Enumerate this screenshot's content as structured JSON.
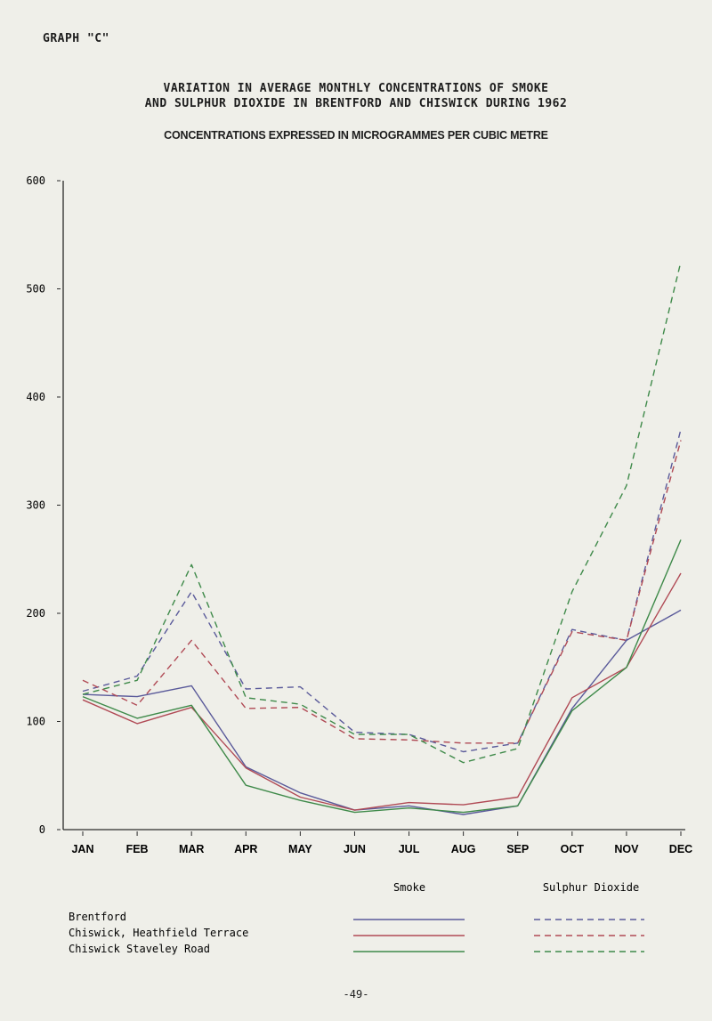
{
  "header": {
    "graph_label": "GRAPH \"C\"",
    "title_line1": "VARIATION IN AVERAGE MONTHLY CONCENTRATIONS OF SMOKE",
    "title_line2": "AND SULPHUR DIOXIDE IN BRENTFORD AND CHISWICK DURING 1962",
    "subtitle": "CONCENTRATIONS EXPRESSED IN MICROGRAMMES PER CUBIC METRE"
  },
  "legend": {
    "smoke_header": "Smoke",
    "so2_header": "Sulphur Dioxide"
  },
  "footer": {
    "page_number": "-49-"
  },
  "colors": {
    "brentford": "#5a5a9a",
    "heathfield": "#b04a55",
    "staveley": "#3f8a4a"
  },
  "chart_data": {
    "type": "line",
    "categories": [
      "JAN",
      "FEB",
      "MAR",
      "APR",
      "MAY",
      "JUN",
      "JUL",
      "AUG",
      "SEP",
      "OCT",
      "NOV",
      "DEC"
    ],
    "ylim": [
      0,
      600
    ],
    "yticks": [
      0,
      100,
      200,
      300,
      400,
      500,
      600
    ],
    "grid": false,
    "legend_placement": "bottom",
    "series": [
      {
        "name": "Brentford",
        "pollutant": "Smoke",
        "values": [
          125,
          123,
          133,
          58,
          34,
          18,
          22,
          14,
          22,
          112,
          175,
          203
        ]
      },
      {
        "name": "Chiswick, Heathfield Terrace",
        "pollutant": "Smoke",
        "values": [
          120,
          98,
          113,
          57,
          30,
          18,
          25,
          23,
          30,
          122,
          150,
          237
        ]
      },
      {
        "name": "Chiswick Staveley Road",
        "pollutant": "Smoke",
        "values": [
          123,
          103,
          115,
          41,
          27,
          16,
          20,
          16,
          22,
          110,
          150,
          268
        ]
      },
      {
        "name": "Brentford",
        "pollutant": "Sulphur Dioxide",
        "values": [
          128,
          142,
          220,
          130,
          132,
          90,
          88,
          72,
          80,
          185,
          175,
          370
        ]
      },
      {
        "name": "Chiswick, Heathfield Terrace",
        "pollutant": "Sulphur Dioxide",
        "values": [
          138,
          115,
          175,
          112,
          113,
          84,
          83,
          80,
          80,
          183,
          175,
          360
        ]
      },
      {
        "name": "Chiswick Staveley Road",
        "pollutant": "Sulphur Dioxide",
        "values": [
          125,
          138,
          245,
          122,
          116,
          88,
          88,
          62,
          75,
          220,
          318,
          525
        ]
      }
    ]
  }
}
